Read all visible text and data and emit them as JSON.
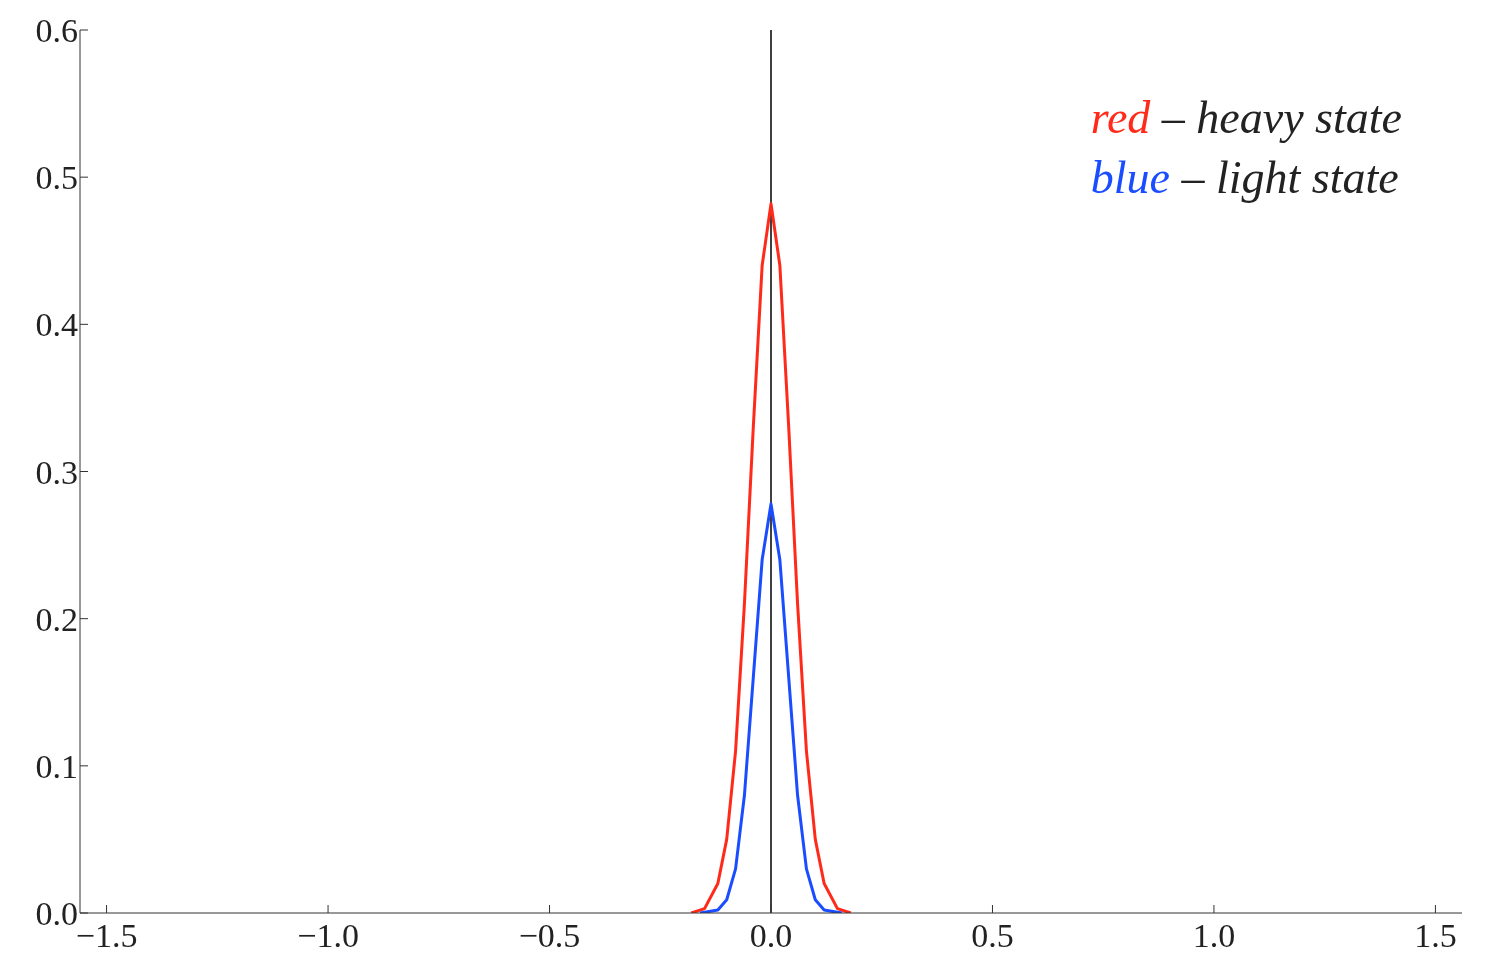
{
  "chart_data": {
    "type": "line",
    "xlim": [
      -1.56,
      1.56
    ],
    "xticks": [
      {
        "value": -1.5,
        "label": "−1.5"
      },
      {
        "value": -1,
        "label": "−1.0"
      },
      {
        "value": -0.5,
        "label": "−0.5"
      },
      {
        "value": 0,
        "label": "0.0"
      },
      {
        "value": 0.5,
        "label": "0.5"
      },
      {
        "value": 1,
        "label": "1.0"
      },
      {
        "value": 1.5,
        "label": "1.5"
      }
    ],
    "ylim": [
      0,
      0.6
    ],
    "yticks": [
      {
        "value": 0,
        "label": "0.0"
      },
      {
        "value": 0.1,
        "label": "0.1"
      },
      {
        "value": 0.2,
        "label": "0.2"
      },
      {
        "value": 0.3,
        "label": "0.3"
      },
      {
        "value": 0.4,
        "label": "0.4"
      },
      {
        "value": 0.5,
        "label": "0.5"
      },
      {
        "value": 0.6,
        "label": "0.6"
      }
    ],
    "grid": false,
    "marker": "none",
    "line_style": "solid",
    "legend": "top right",
    "ref_lines": [
      {
        "axis": "x",
        "value": 0,
        "color": "#000000"
      }
    ],
    "series": [
      {
        "name": "red – heavy state",
        "color": "#ff2a1a",
        "x": [
          -0.18,
          -0.15,
          -0.12,
          -0.1,
          -0.08,
          -0.06,
          -0.04,
          -0.02,
          0,
          0.02,
          0.04,
          0.06,
          0.08,
          0.1,
          0.12,
          0.15,
          0.18
        ],
        "values": [
          0,
          0.003,
          0.02,
          0.05,
          0.11,
          0.21,
          0.33,
          0.44,
          0.482,
          0.44,
          0.33,
          0.21,
          0.11,
          0.05,
          0.02,
          0.003,
          0
        ]
      },
      {
        "name": "blue – light state",
        "color": "#1a4dff",
        "x": [
          -0.16,
          -0.12,
          -0.1,
          -0.08,
          -0.06,
          -0.04,
          -0.02,
          0,
          0.02,
          0.04,
          0.06,
          0.08,
          0.1,
          0.12,
          0.16
        ],
        "values": [
          0,
          0.002,
          0.009,
          0.03,
          0.08,
          0.16,
          0.24,
          0.278,
          0.24,
          0.16,
          0.08,
          0.03,
          0.009,
          0.002,
          0
        ]
      }
    ]
  }
}
